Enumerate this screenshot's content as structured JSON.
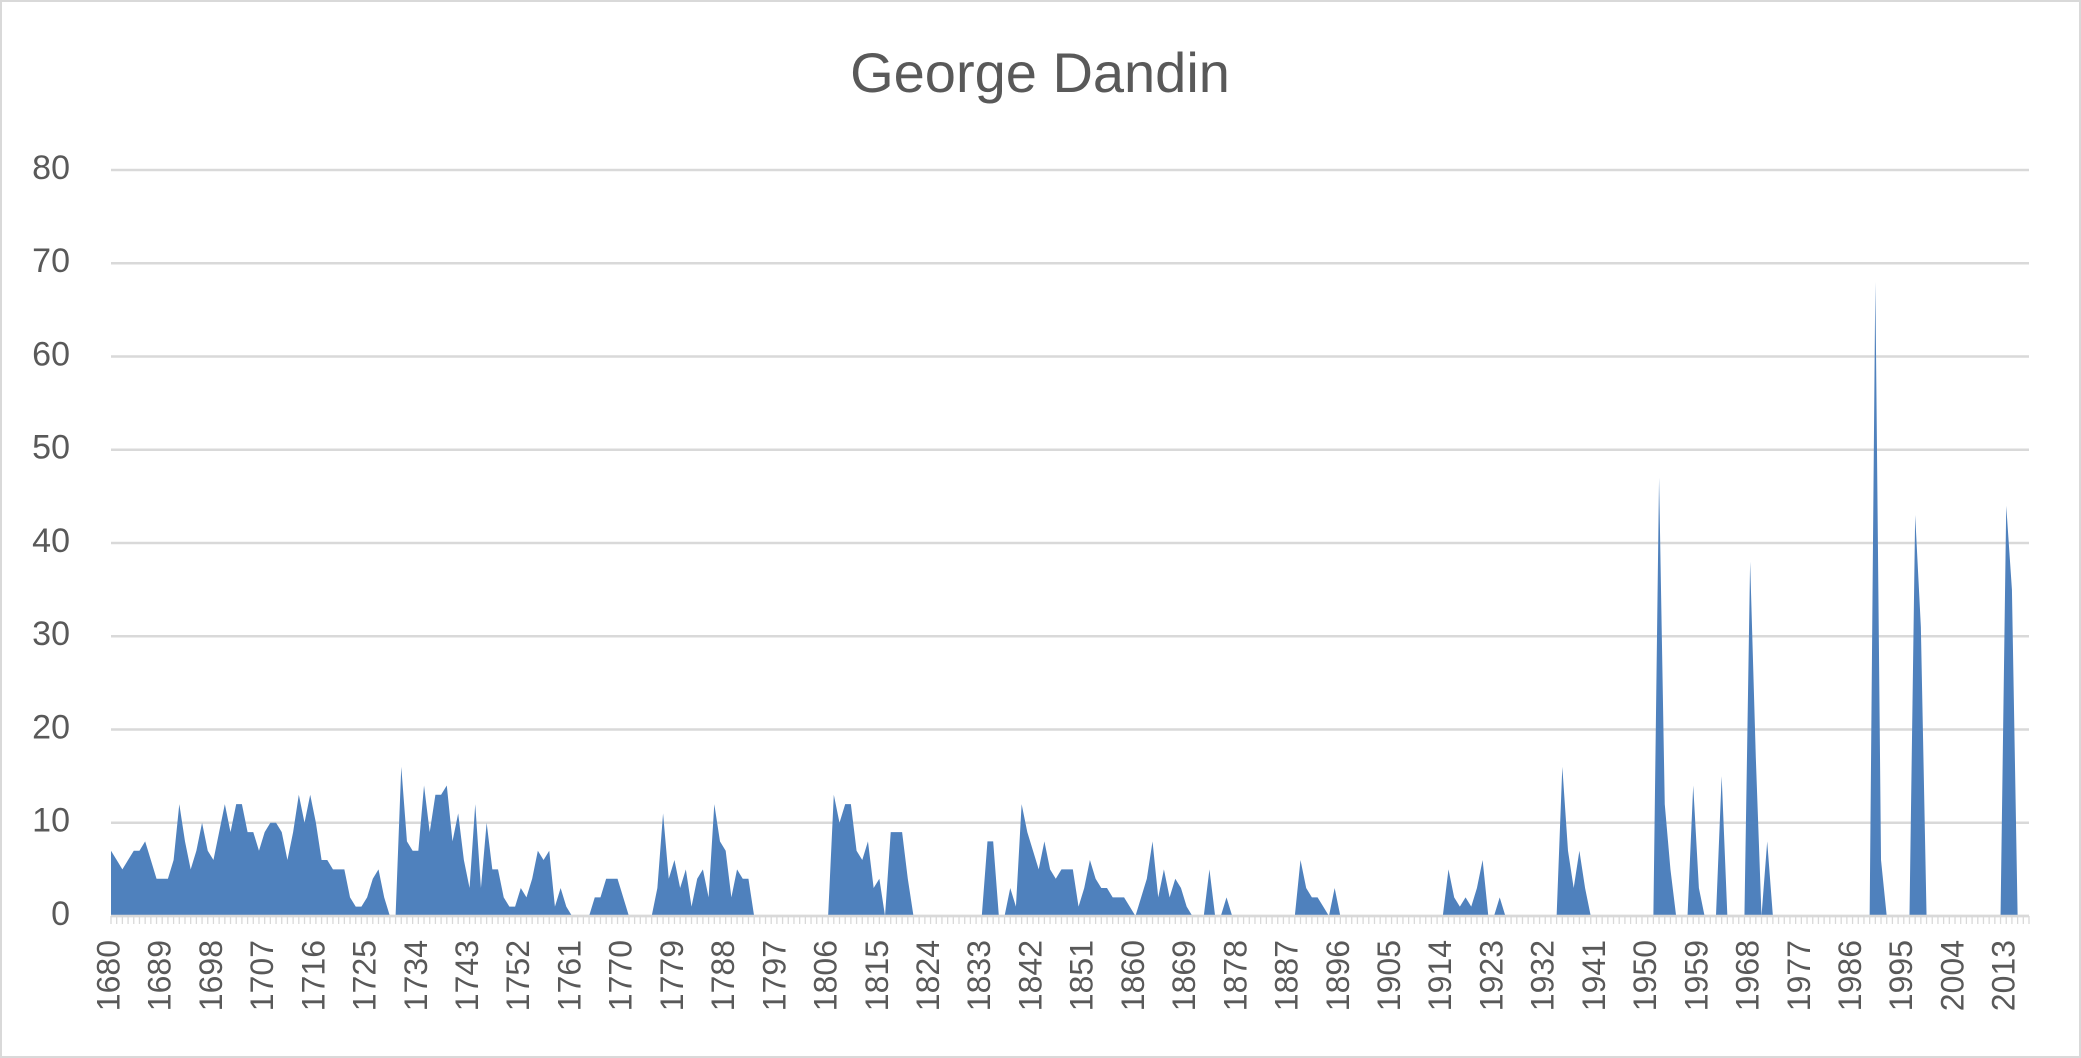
{
  "chart_data": {
    "type": "area",
    "title": "George Dandin",
    "color": "#4f81bd",
    "ylim": [
      0,
      80
    ],
    "yticks": [
      0,
      10,
      20,
      30,
      40,
      50,
      60,
      70,
      80
    ],
    "grid": true,
    "categories": [
      1680,
      null,
      null,
      null,
      null,
      null,
      null,
      null,
      null,
      1689,
      null,
      null,
      null,
      null,
      null,
      null,
      null,
      null,
      1698,
      null,
      null,
      null,
      null,
      null,
      null,
      null,
      null,
      1707,
      null,
      null,
      null,
      null,
      null,
      null,
      null,
      null,
      1716,
      null,
      null,
      null,
      null,
      null,
      null,
      null,
      null,
      1725,
      null,
      null,
      null,
      null,
      null,
      null,
      null,
      null,
      1734,
      null,
      null,
      null,
      null,
      null,
      null,
      null,
      null,
      1743,
      null,
      null,
      null,
      null,
      null,
      null,
      null,
      null,
      1752,
      null,
      null,
      null,
      null,
      null,
      null,
      null,
      null,
      1761,
      null,
      null,
      null,
      null,
      null,
      null,
      null,
      null,
      1770,
      null,
      null,
      null,
      null,
      null,
      null,
      null,
      null,
      1779,
      null,
      null,
      null,
      null,
      null,
      null,
      null,
      null,
      1788,
      null,
      null,
      null,
      null,
      null,
      null,
      null,
      null,
      1797,
      null,
      null,
      null,
      null,
      null,
      null,
      null,
      null,
      1806,
      null,
      null,
      null,
      null,
      null,
      null,
      null,
      null,
      1815,
      null,
      null,
      null,
      null,
      null,
      null,
      null,
      null,
      1824,
      null,
      null,
      null,
      null,
      null,
      null,
      null,
      null,
      1833,
      null,
      null,
      null,
      null,
      null,
      null,
      null,
      null,
      1842,
      null,
      null,
      null,
      null,
      null,
      null,
      null,
      null,
      1851,
      null,
      null,
      null,
      null,
      null,
      null,
      null,
      null,
      1860,
      null,
      null,
      null,
      null,
      null,
      null,
      null,
      null,
      1869,
      null,
      null,
      null,
      null,
      null,
      null,
      null,
      null,
      1878,
      null,
      null,
      null,
      null,
      null,
      null,
      null,
      null,
      1887,
      null,
      null,
      null,
      null,
      null,
      null,
      null,
      null,
      1896,
      null,
      null,
      null,
      null,
      null,
      null,
      null,
      null,
      1905,
      null,
      null,
      null,
      null,
      null,
      null,
      null,
      null,
      1914,
      null,
      null,
      null,
      null,
      null,
      null,
      null,
      null,
      1923,
      null,
      null,
      null,
      null,
      null,
      null,
      null,
      null,
      1932,
      null,
      null,
      null,
      null,
      null,
      null,
      null,
      null,
      1941,
      null,
      null,
      null,
      null,
      null,
      null,
      null,
      null,
      1950,
      null,
      null,
      null,
      null,
      null,
      null,
      null,
      null,
      1959,
      null,
      null,
      null,
      null,
      null,
      null,
      null,
      null,
      1968,
      null,
      null,
      null,
      null,
      null,
      null,
      null,
      null,
      1977,
      null,
      null,
      null,
      null,
      null,
      null,
      null,
      null,
      1986,
      null,
      null,
      null,
      null,
      null,
      null,
      null,
      null,
      1995,
      null,
      null,
      null,
      null,
      null,
      null,
      null,
      null,
      2004,
      null,
      null,
      null,
      null,
      null,
      null,
      null,
      null,
      2013,
      null,
      null,
      null,
      null
    ],
    "values": [
      7,
      6,
      5,
      6,
      7,
      7,
      8,
      6,
      4,
      4,
      4,
      6,
      12,
      8,
      5,
      7,
      10,
      7,
      6,
      9,
      12,
      9,
      12,
      12,
      9,
      9,
      7,
      9,
      10,
      10,
      9,
      6,
      9,
      13,
      10,
      13,
      10,
      6,
      6,
      5,
      5,
      5,
      2,
      1,
      1,
      2,
      4,
      5,
      2,
      0,
      0,
      16,
      8,
      7,
      7,
      14,
      9,
      13,
      13,
      14,
      8,
      11,
      6,
      3,
      12,
      3,
      10,
      5,
      5,
      2,
      1,
      1,
      3,
      2,
      4,
      7,
      6,
      7,
      1,
      3,
      1,
      0,
      0,
      0,
      0,
      2,
      2,
      4,
      4,
      4,
      2,
      0,
      0,
      0,
      0,
      0,
      3,
      11,
      4,
      6,
      3,
      5,
      1,
      4,
      5,
      2,
      12,
      8,
      7,
      2,
      5,
      4,
      4,
      0,
      0,
      0,
      0,
      0,
      0,
      0,
      0,
      0,
      0,
      0,
      0,
      0,
      0,
      13,
      10,
      12,
      12,
      7,
      6,
      8,
      3,
      4,
      0,
      9,
      9,
      9,
      4,
      0,
      0,
      0,
      0,
      0,
      0,
      0,
      0,
      0,
      0,
      0,
      0,
      0,
      8,
      8,
      0,
      0,
      3,
      1,
      12,
      9,
      7,
      5,
      8,
      5,
      4,
      5,
      5,
      5,
      1,
      3,
      6,
      4,
      3,
      3,
      2,
      2,
      2,
      1,
      0,
      2,
      4,
      8,
      2,
      5,
      2,
      4,
      3,
      1,
      0,
      0,
      0,
      5,
      0,
      0,
      2,
      0,
      0,
      0,
      0,
      0,
      0,
      0,
      0,
      0,
      0,
      0,
      0,
      6,
      3,
      2,
      2,
      1,
      0,
      3,
      0,
      0,
      0,
      0,
      0,
      0,
      0,
      0,
      0,
      0,
      0,
      0,
      0,
      0,
      0,
      0,
      0,
      0,
      0,
      5,
      2,
      1,
      2,
      1,
      3,
      6,
      0,
      0,
      2,
      0,
      0,
      0,
      0,
      0,
      0,
      0,
      0,
      0,
      0,
      16,
      7,
      3,
      7,
      3,
      0,
      0,
      0,
      0,
      0,
      0,
      0,
      0,
      0,
      0,
      0,
      0,
      47,
      12,
      5,
      0,
      0,
      0,
      14,
      3,
      0,
      0,
      0,
      15,
      0,
      0,
      0,
      0,
      38,
      17,
      0,
      8,
      0,
      0,
      0,
      0,
      0,
      0,
      0,
      0,
      0,
      0,
      0,
      0,
      0,
      0,
      0,
      0,
      0,
      0,
      68,
      6,
      0,
      0,
      0,
      0,
      0,
      43,
      31,
      0,
      0,
      0,
      0,
      0,
      0,
      0,
      0,
      0,
      0,
      0,
      0,
      0,
      0,
      44,
      35,
      0,
      0,
      0
    ]
  }
}
